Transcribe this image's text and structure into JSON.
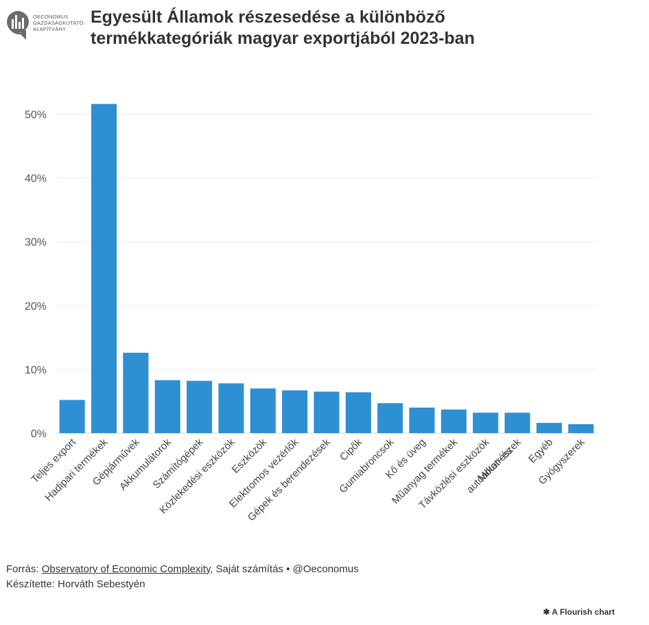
{
  "header": {
    "logo_lines": [
      "OECONOMUS",
      "GAZDASÁGKUTATÓ",
      "ALAPÍTVÁNY"
    ],
    "title_line1": "Egyesült Államok részesedése a különböző",
    "title_line2": "termékkategóriák magyar exportjából 2023-ban"
  },
  "chart_data": {
    "type": "bar",
    "title": "Egyesült Államok részesedése a különböző termékkategóriák magyar exportjából 2023-ban",
    "xlabel": "",
    "ylabel": "",
    "ylim": [
      0,
      55
    ],
    "yticks": [
      0,
      10,
      20,
      30,
      40,
      50
    ],
    "ytick_labels": [
      "0%",
      "10%",
      "20%",
      "30%",
      "40%",
      "50%"
    ],
    "grid": true,
    "bar_color": "#2f8fd3",
    "categories": [
      "Teljes export",
      "Hadipari termékek",
      "Gépjárművek",
      "Akkumulátorok",
      "Számítógépek",
      "Közlekedési eszközök",
      "Eszközök",
      "Elektromos vezérlők",
      "Gépek és berendezések",
      "Cipők",
      "Gumiabroncsok",
      "Kő és üveg",
      "Műanyag termékek",
      "Távközlési eszközök",
      "Motor- és autóalkatrészek",
      "Egyéb",
      "Gyógyszerek"
    ],
    "values": [
      5.2,
      51.6,
      12.6,
      8.3,
      8.2,
      7.8,
      7.0,
      6.7,
      6.5,
      6.4,
      4.7,
      4.0,
      3.7,
      3.2,
      3.2,
      1.6,
      1.4
    ]
  },
  "footer": {
    "source_prefix": "Forrás: ",
    "source_link": "Observatory of Economic Complexity",
    "source_suffix": ", Saját számítás • @Oeconomus",
    "author": "Készítette: Horváth Sebestyén",
    "flourish": "A Flourish chart"
  }
}
